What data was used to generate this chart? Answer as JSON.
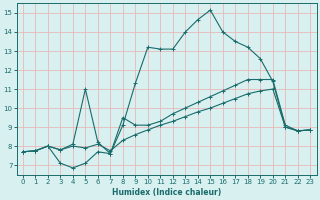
{
  "xlabel": "Humidex (Indice chaleur)",
  "bg_color": "#d8f0f0",
  "grid_color": "#e8b8b8",
  "line_color": "#1a6b6b",
  "xlim": [
    -0.5,
    23.5
  ],
  "ylim": [
    6.5,
    15.5
  ],
  "xticks": [
    0,
    1,
    2,
    3,
    4,
    5,
    6,
    7,
    8,
    9,
    10,
    11,
    12,
    13,
    14,
    15,
    16,
    17,
    18,
    19,
    20,
    21,
    22,
    23
  ],
  "yticks": [
    7,
    8,
    9,
    10,
    11,
    12,
    13,
    14,
    15
  ],
  "lines": [
    {
      "x": [
        0,
        1,
        2,
        3,
        4,
        5,
        6,
        7,
        8,
        9,
        10,
        11,
        12,
        13,
        14,
        15,
        16,
        17,
        18,
        19,
        20,
        21,
        22,
        23
      ],
      "y": [
        7.7,
        7.75,
        8.0,
        7.1,
        6.85,
        7.1,
        7.7,
        7.6,
        9.1,
        11.3,
        13.2,
        13.1,
        13.1,
        14.0,
        14.65,
        15.15,
        14.0,
        13.5,
        13.2,
        12.6,
        11.4,
        9.0,
        8.8,
        8.85
      ]
    },
    {
      "x": [
        0,
        1,
        2,
        3,
        4,
        5,
        6,
        7,
        8,
        9,
        10,
        11,
        12,
        13,
        14,
        15,
        16,
        17,
        18,
        19,
        20,
        21,
        22,
        23
      ],
      "y": [
        7.7,
        7.75,
        8.0,
        7.8,
        8.1,
        11.0,
        8.2,
        7.6,
        9.5,
        9.1,
        9.1,
        9.3,
        9.7,
        10.0,
        10.3,
        10.6,
        10.9,
        11.2,
        11.5,
        11.5,
        11.5,
        9.1,
        8.8,
        8.85
      ]
    },
    {
      "x": [
        0,
        1,
        2,
        3,
        4,
        5,
        6,
        7,
        8,
        9,
        10,
        11,
        12,
        13,
        14,
        15,
        16,
        17,
        18,
        19,
        20,
        21,
        22,
        23
      ],
      "y": [
        7.7,
        7.75,
        8.0,
        7.8,
        8.0,
        7.9,
        8.1,
        7.75,
        8.3,
        8.6,
        8.85,
        9.1,
        9.3,
        9.55,
        9.8,
        10.0,
        10.25,
        10.5,
        10.75,
        10.9,
        11.0,
        9.0,
        8.8,
        8.85
      ]
    }
  ]
}
